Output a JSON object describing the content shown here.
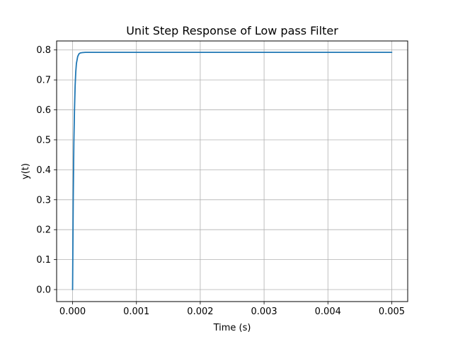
{
  "chart_data": {
    "type": "line",
    "title": "Unit Step Response of Low pass Filter",
    "xlabel": "Time (s)",
    "ylabel": "y(t)",
    "xlim": [
      -0.00025,
      0.00525
    ],
    "ylim": [
      -0.04,
      0.83
    ],
    "grid": true,
    "xticks": [
      0.0,
      0.001,
      0.002,
      0.003,
      0.004,
      0.005
    ],
    "xtick_labels": [
      "0.000",
      "0.001",
      "0.002",
      "0.003",
      "0.004",
      "0.005"
    ],
    "yticks": [
      0.0,
      0.1,
      0.2,
      0.3,
      0.4,
      0.5,
      0.6,
      0.7,
      0.8
    ],
    "ytick_labels": [
      "0.0",
      "0.1",
      "0.2",
      "0.3",
      "0.4",
      "0.5",
      "0.6",
      "0.7",
      "0.8"
    ],
    "series": [
      {
        "color": "#1f77b4",
        "x": [
          0.0,
          1e-05,
          2e-05,
          3e-05,
          4e-05,
          5e-05,
          6e-05,
          8e-05,
          0.0001,
          0.00012,
          0.00015,
          0.0002,
          0.0003,
          0.0005,
          0.001,
          0.002,
          0.003,
          0.004,
          0.005
        ],
        "y": [
          0.0,
          0.3,
          0.49,
          0.6,
          0.68,
          0.727,
          0.755,
          0.778,
          0.787,
          0.79,
          0.791,
          0.792,
          0.792,
          0.792,
          0.792,
          0.792,
          0.792,
          0.792,
          0.792
        ]
      }
    ]
  }
}
